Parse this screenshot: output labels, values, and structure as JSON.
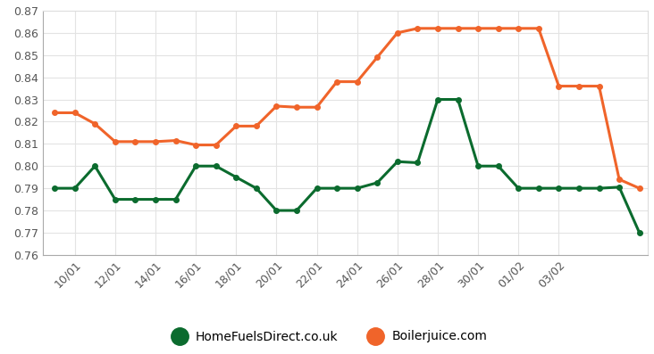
{
  "chart_data": {
    "type": "line",
    "categories": [
      null,
      "10/01",
      null,
      "12/01",
      null,
      "14/01",
      null,
      "16/01",
      null,
      "18/01",
      null,
      "20/01",
      null,
      "22/01",
      null,
      "24/01",
      null,
      "26/01",
      null,
      "28/01",
      null,
      "30/01",
      null,
      "01/02",
      null,
      "03/02",
      null,
      null,
      null,
      null
    ],
    "series": [
      {
        "name": "HomeFuelsDirect.co.uk",
        "color": "#0b6b2e",
        "marker": "o",
        "values": [
          0.79,
          0.79,
          0.8,
          0.785,
          0.785,
          0.785,
          0.785,
          0.8,
          0.8,
          0.795,
          0.79,
          0.78,
          0.78,
          0.79,
          0.79,
          0.79,
          0.7925,
          0.802,
          0.8015,
          0.83,
          0.83,
          0.8,
          0.8,
          0.79,
          0.79,
          0.79,
          0.79,
          0.79,
          0.7905,
          0.77
        ]
      },
      {
        "name": "Boilerjuice.com",
        "color": "#f0642a",
        "marker": "o",
        "values": [
          0.824,
          0.824,
          0.819,
          0.811,
          0.811,
          0.811,
          0.8115,
          0.8095,
          0.8095,
          0.818,
          0.818,
          0.827,
          0.8265,
          0.8265,
          0.838,
          0.838,
          0.849,
          0.86,
          0.862,
          0.862,
          0.862,
          0.862,
          0.862,
          0.862,
          0.862,
          0.836,
          0.836,
          0.836,
          0.794,
          0.79
        ]
      }
    ],
    "ylim": [
      0.76,
      0.87
    ],
    "yticks": [
      0.76,
      0.77,
      0.78,
      0.79,
      {
        "value": 0.8,
        "label": "0.80"
      },
      0.81,
      0.82,
      0.83,
      0.84,
      0.85,
      0.86,
      0.87
    ],
    "grid": true,
    "legend": "lower center"
  }
}
